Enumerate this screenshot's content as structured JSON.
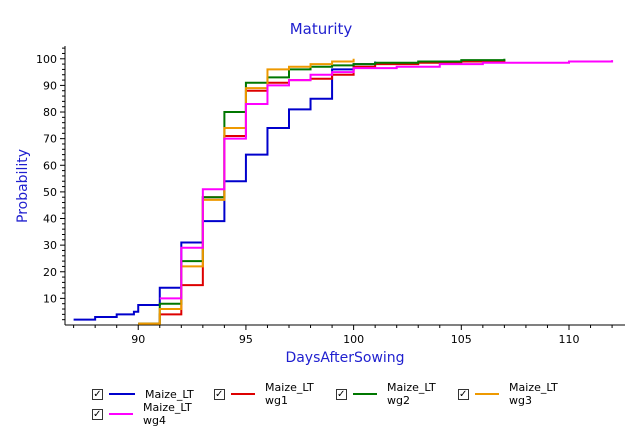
{
  "chart_data": {
    "type": "line",
    "title": "Maturity",
    "xlabel": "DaysAfterSowing",
    "ylabel": "Probability",
    "xlim": [
      86.6,
      112.6
    ],
    "ylim": [
      0,
      104.8
    ],
    "xticks": [
      90,
      95,
      100,
      105,
      110
    ],
    "yticks": [
      10,
      20,
      30,
      40,
      50,
      60,
      70,
      80,
      90,
      100
    ],
    "grid": false,
    "legend_placement": "bottom",
    "series": [
      {
        "name": "Maize_LT",
        "color": "#0000cc",
        "step": true,
        "x": [
          87,
          88,
          89,
          89.8,
          90,
          91,
          92,
          93,
          94,
          95,
          96,
          97,
          98,
          99,
          100,
          101
        ],
        "y": [
          2,
          3,
          4,
          5,
          7.5,
          14,
          31,
          39,
          54,
          64,
          74,
          81,
          85,
          96,
          98,
          99
        ]
      },
      {
        "name": "Maize_LT wg1",
        "color": "#dd0000",
        "step": true,
        "x": [
          90,
          91,
          92,
          93,
          94,
          95,
          96,
          97,
          98,
          99,
          100,
          101,
          103,
          105,
          107
        ],
        "y": [
          0.5,
          4,
          15,
          48,
          71,
          88,
          91,
          92,
          92.5,
          94,
          97,
          98,
          98.5,
          99,
          99.5
        ]
      },
      {
        "name": "Maize_LT wg2",
        "color": "#007700",
        "step": true,
        "x": [
          90,
          91,
          92,
          93,
          94,
          95,
          96,
          97,
          98,
          99,
          100,
          101,
          103,
          105,
          107
        ],
        "y": [
          0.5,
          8,
          24,
          48,
          80,
          91,
          93,
          96,
          97,
          97.5,
          98,
          98.5,
          99,
          99.5,
          100
        ]
      },
      {
        "name": "Maize_LT wg3",
        "color": "#ee9900",
        "step": true,
        "x": [
          90,
          91,
          92,
          93,
          94,
          95,
          96,
          97,
          98,
          99,
          100
        ],
        "y": [
          0.5,
          6,
          22,
          47,
          74,
          89,
          96,
          97,
          98,
          99,
          100
        ]
      },
      {
        "name": "Maize_LT wg4",
        "color": "#ff00ff",
        "step": true,
        "x": [
          91,
          92,
          93,
          94,
          95,
          96,
          97,
          98,
          99,
          100,
          102,
          104,
          106,
          110,
          112
        ],
        "y": [
          10,
          29,
          51,
          70,
          83,
          90,
          92,
          94,
          95,
          96.5,
          97,
          98,
          98.5,
          99,
          99.5
        ]
      }
    ]
  }
}
